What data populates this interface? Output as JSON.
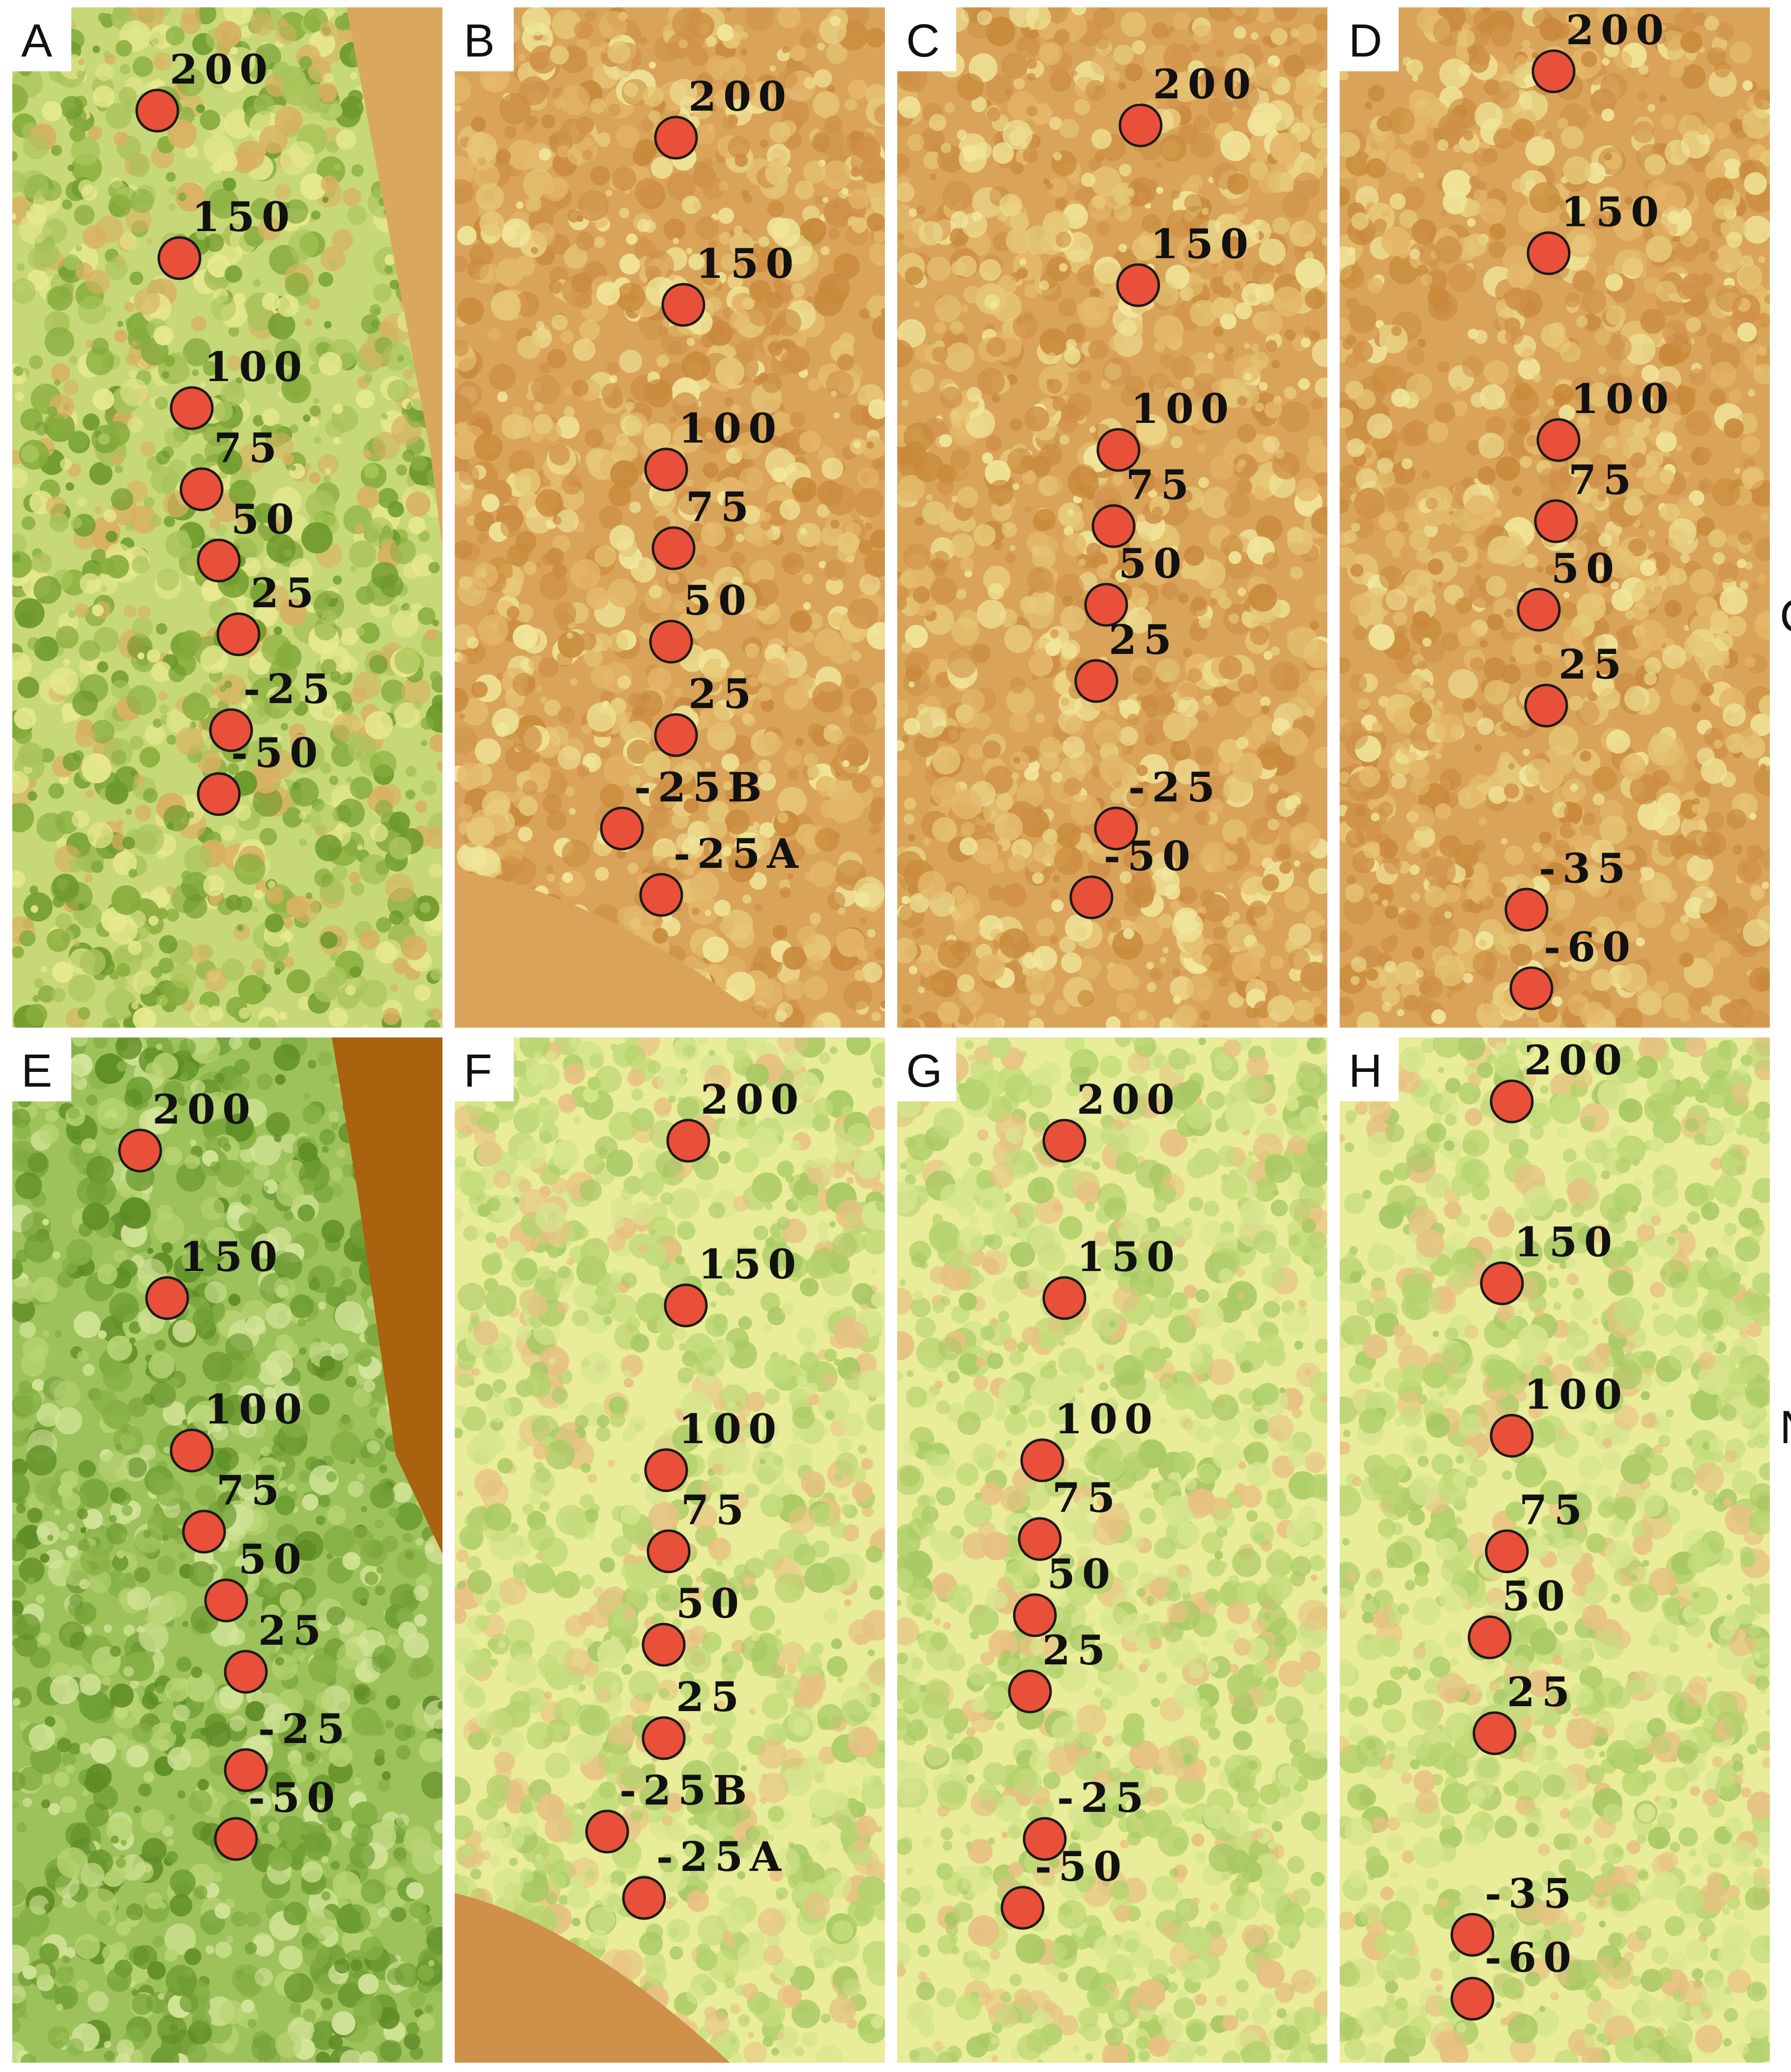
{
  "figure": {
    "edge_letters": [
      "C",
      "N"
    ],
    "palettes": {
      "green": [
        "#c7d878",
        "#a9c45a",
        "#87ad3d",
        "#6d9a2a",
        "#e7e98f",
        "#d8b062"
      ],
      "orange": [
        "#d9a45a",
        "#cf9149",
        "#e6c878",
        "#f0e69a",
        "#c98a3c",
        "#e4b86a"
      ],
      "lightgreen": [
        "#e9ec98",
        "#d6e58e",
        "#c4dc7c",
        "#b4d26e",
        "#e7c182",
        "#a8c964"
      ],
      "darkgreen": [
        "#9dc25b",
        "#85b044",
        "#6f9e34",
        "#b8d474",
        "#d4e59a",
        "#5e8c26"
      ]
    },
    "panels": [
      {
        "letter": "A",
        "palette": "green",
        "plots": [
          "200",
          "150",
          "100",
          "75",
          "50",
          "25",
          "-25",
          "-50"
        ]
      },
      {
        "letter": "B",
        "palette": "orange",
        "plots": [
          "200",
          "150",
          "100",
          "75",
          "50",
          "25",
          "-25B",
          "-25A"
        ]
      },
      {
        "letter": "C",
        "palette": "orange",
        "plots": [
          "200",
          "150",
          "100",
          "75",
          "50",
          "25",
          "-25",
          "-50"
        ]
      },
      {
        "letter": "D",
        "palette": "orange",
        "plots": [
          "200",
          "150",
          "100",
          "75",
          "50",
          "25",
          "-35",
          "-60"
        ]
      },
      {
        "letter": "E",
        "palette": "darkgreen",
        "plots": [
          "200",
          "150",
          "100",
          "75",
          "50",
          "25",
          "-25",
          "-50"
        ]
      },
      {
        "letter": "F",
        "palette": "lightgreen",
        "plots": [
          "200",
          "150",
          "100",
          "75",
          "50",
          "25",
          "-25B",
          "-25A"
        ]
      },
      {
        "letter": "G",
        "palette": "lightgreen",
        "plots": [
          "200",
          "150",
          "100",
          "75",
          "50",
          "25",
          "-25",
          "-50"
        ]
      },
      {
        "letter": "H",
        "palette": "lightgreen",
        "plots": [
          "200",
          "150",
          "100",
          "75",
          "50",
          "25",
          "-35",
          "-60"
        ]
      }
    ]
  }
}
